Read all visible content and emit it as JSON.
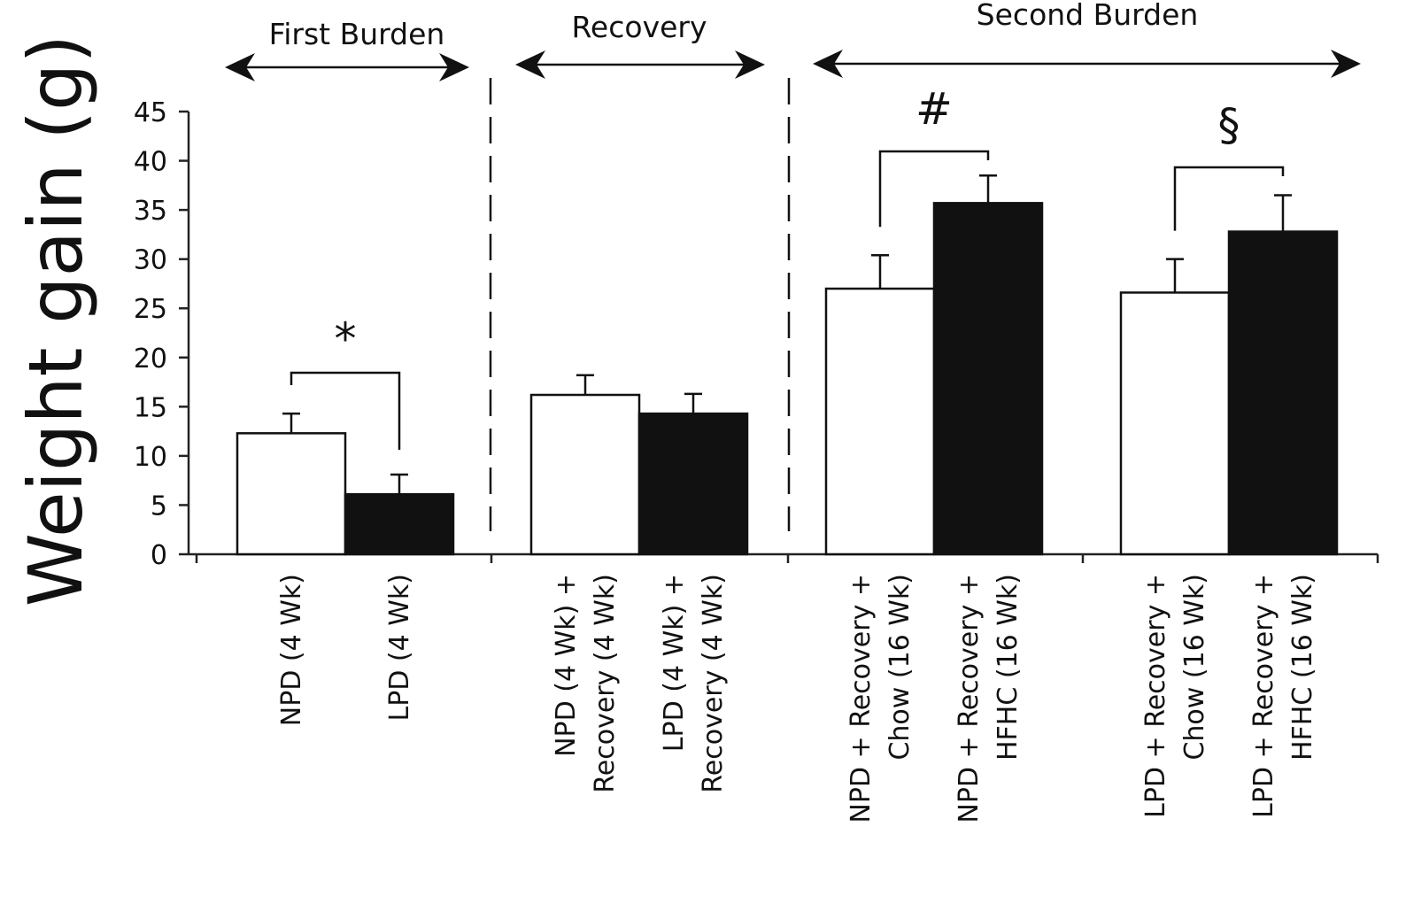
{
  "chart_data": {
    "type": "bar",
    "title": "",
    "ylabel": "Weight gain (g)",
    "xlabel": "",
    "ylim": [
      0,
      45
    ],
    "yticks": [
      "0",
      "5",
      "10",
      "15",
      "20",
      "25",
      "30",
      "35",
      "40",
      "45"
    ],
    "phases": [
      {
        "label": "First Burden"
      },
      {
        "label": "Recovery"
      },
      {
        "label": "Second Burden"
      }
    ],
    "bars": [
      {
        "lines": [
          "NPD (4 Wk)"
        ],
        "value": 12.3,
        "error": 2.0,
        "fill": "#ffffff"
      },
      {
        "lines": [
          "LPD (4 Wk)"
        ],
        "value": 6.1,
        "error": 2.0,
        "fill": "#111111"
      },
      {
        "lines": [
          "NPD (4 Wk) +",
          "Recovery (4 Wk)"
        ],
        "value": 16.2,
        "error": 2.0,
        "fill": "#ffffff"
      },
      {
        "lines": [
          "LPD (4 Wk) +",
          "Recovery (4 Wk)"
        ],
        "value": 14.3,
        "error": 2.0,
        "fill": "#111111"
      },
      {
        "lines": [
          "NPD +  Recovery +",
          "Chow (16 Wk)"
        ],
        "value": 27.0,
        "error": 3.4,
        "fill": "#ffffff"
      },
      {
        "lines": [
          "NPD +  Recovery +",
          "HFHC (16 Wk)"
        ],
        "value": 35.7,
        "error": 2.8,
        "fill": "#111111"
      },
      {
        "lines": [
          "LPD + Recovery +",
          "Chow (16 Wk)"
        ],
        "value": 26.6,
        "error": 3.4,
        "fill": "#ffffff"
      },
      {
        "lines": [
          "LPD + Recovery +",
          "HFHC (16 Wk)"
        ],
        "value": 32.8,
        "error": 3.7,
        "fill": "#111111"
      }
    ],
    "significance": [
      {
        "mark": "*",
        "from": 0,
        "to": 1
      },
      {
        "mark": "#",
        "from": 4,
        "to": 5
      },
      {
        "mark": "§",
        "from": 6,
        "to": 7
      }
    ],
    "grid": false,
    "legend": "none"
  }
}
